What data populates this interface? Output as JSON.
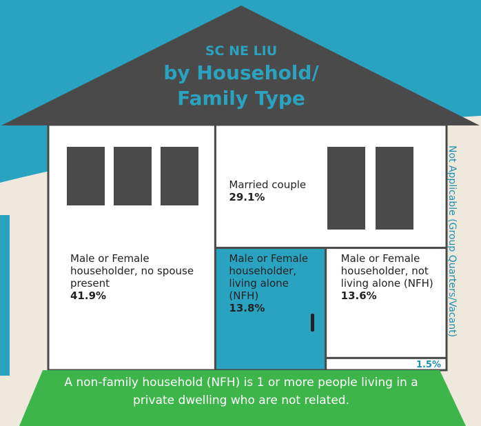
{
  "chart_data": {
    "type": "treemap",
    "title": "SC NE LIU",
    "subtitle": [
      "by Household/",
      "Family Type"
    ],
    "categories": [
      "Male or Female householder, no spouse present",
      "Married couple",
      "Male or Female householder, living alone (NFH)",
      "Male or Female householder, not living alone (NFH)",
      "Not Applicable (Group Quarters/Vacant)"
    ],
    "values": [
      41.9,
      29.1,
      13.8,
      13.6,
      1.5
    ],
    "value_labels": [
      "41.9%",
      "29.1%",
      "13.8%",
      "13.6%",
      "1.5%"
    ],
    "colors": [
      "#ffffff",
      "#ffffff",
      "#2aa3c1",
      "#ffffff",
      "#ffffff"
    ],
    "note": "A non-family household (NFH) is 1 or more people living in a private dwelling who are not related."
  }
}
